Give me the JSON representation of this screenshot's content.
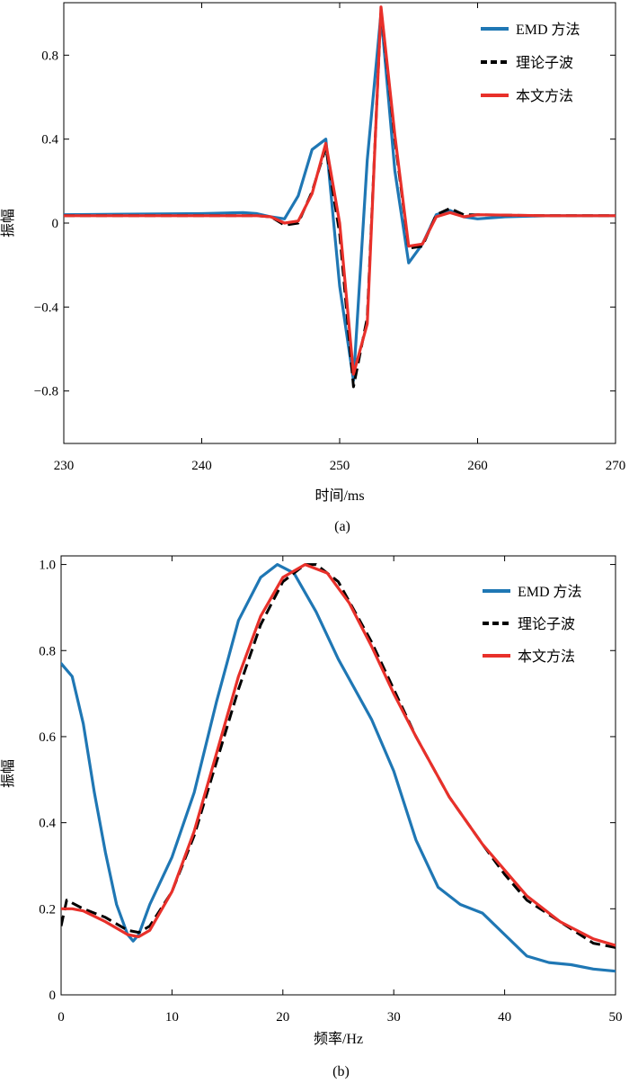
{
  "chart_data": [
    {
      "type": "line",
      "caption": "(a)",
      "xlabel": "时间/ms",
      "ylabel": "振幅",
      "xlim": [
        230,
        270
      ],
      "ylim": [
        -1.05,
        1.05
      ],
      "xticks": [
        230,
        240,
        250,
        260,
        270
      ],
      "yticks": [
        0.8,
        0.4,
        0,
        -0.4,
        -0.8
      ],
      "ytick_labels": [
        "0.8",
        "0.4",
        "0",
        "−0.4",
        "−0.8"
      ],
      "legend_position": "top-right",
      "series": [
        {
          "name": "EMD 方法",
          "color": "#1f77b4",
          "dash": "solid",
          "x": [
            230,
            240,
            243,
            244,
            245,
            246,
            247,
            248,
            249,
            250,
            251,
            252,
            253,
            254,
            255,
            256,
            257,
            258,
            259,
            260,
            262,
            265,
            270
          ],
          "y": [
            0.04,
            0.045,
            0.05,
            0.045,
            0.03,
            0.02,
            0.13,
            0.35,
            0.4,
            -0.3,
            -0.75,
            0.3,
            1.0,
            0.25,
            -0.19,
            -0.1,
            0.04,
            0.06,
            0.03,
            0.02,
            0.03,
            0.035,
            0.035
          ]
        },
        {
          "name": "理论子波",
          "color": "#000000",
          "dash": "dashed",
          "x": [
            230,
            244,
            245,
            246,
            247,
            248,
            249,
            250,
            251,
            252,
            253,
            254,
            255,
            256,
            257,
            258,
            259,
            260,
            265,
            270
          ],
          "y": [
            0.035,
            0.035,
            0.03,
            -0.01,
            0.0,
            0.15,
            0.36,
            -0.05,
            -0.78,
            -0.45,
            1.02,
            0.4,
            -0.12,
            -0.11,
            0.04,
            0.07,
            0.04,
            0.04,
            0.035,
            0.035
          ]
        },
        {
          "name": "本文方法",
          "color": "#e8302a",
          "dash": "solid",
          "x": [
            230,
            244,
            245,
            246,
            247,
            248,
            249,
            250,
            251,
            252,
            253,
            254,
            255,
            256,
            257,
            258,
            259,
            260,
            265,
            270
          ],
          "y": [
            0.035,
            0.035,
            0.03,
            0.0,
            0.01,
            0.14,
            0.38,
            0.0,
            -0.72,
            -0.48,
            1.03,
            0.42,
            -0.11,
            -0.1,
            0.03,
            0.05,
            0.03,
            0.04,
            0.035,
            0.035
          ]
        }
      ]
    },
    {
      "type": "line",
      "caption": "(b)",
      "xlabel": "频率/Hz",
      "ylabel": "振幅",
      "xlim": [
        0,
        50
      ],
      "ylim": [
        0,
        1.02
      ],
      "xticks": [
        0,
        10,
        20,
        30,
        40,
        50
      ],
      "yticks": [
        0,
        0.2,
        0.4,
        0.6,
        0.8,
        1.0
      ],
      "ytick_labels": [
        "0",
        "0.2",
        "0.4",
        "0.6",
        "0.8",
        "1.0"
      ],
      "legend_position": "top-right",
      "series": [
        {
          "name": "EMD 方法",
          "color": "#1f77b4",
          "dash": "solid",
          "x": [
            0,
            1,
            2,
            3,
            4,
            5,
            6,
            6.5,
            7,
            8,
            10,
            12,
            14,
            16,
            18,
            19.5,
            21,
            23,
            25,
            28,
            30,
            32,
            34,
            36,
            38,
            40,
            42,
            44,
            46,
            48,
            50
          ],
          "y": [
            0.77,
            0.74,
            0.63,
            0.47,
            0.33,
            0.21,
            0.14,
            0.125,
            0.14,
            0.21,
            0.32,
            0.47,
            0.68,
            0.87,
            0.97,
            1.0,
            0.98,
            0.89,
            0.78,
            0.64,
            0.52,
            0.36,
            0.25,
            0.21,
            0.19,
            0.14,
            0.09,
            0.075,
            0.07,
            0.06,
            0.055
          ]
        },
        {
          "name": "理论子波",
          "color": "#000000",
          "dash": "dashed",
          "x": [
            0,
            0.5,
            2,
            4,
            6,
            7,
            8,
            10,
            12,
            14,
            16,
            18,
            20,
            22,
            23,
            25,
            28,
            30,
            32,
            35,
            38,
            40,
            42,
            45,
            48,
            50
          ],
          "y": [
            0.16,
            0.22,
            0.2,
            0.18,
            0.15,
            0.145,
            0.16,
            0.24,
            0.37,
            0.54,
            0.71,
            0.86,
            0.96,
            1.0,
            1.0,
            0.96,
            0.82,
            0.71,
            0.6,
            0.46,
            0.35,
            0.28,
            0.22,
            0.17,
            0.12,
            0.11
          ]
        },
        {
          "name": "本文方法",
          "color": "#e8302a",
          "dash": "solid",
          "x": [
            0,
            1,
            2,
            4,
            6,
            7,
            8,
            10,
            12,
            14,
            16,
            18,
            20,
            22,
            24,
            26,
            28,
            30,
            32,
            35,
            38,
            40,
            42,
            45,
            48,
            50
          ],
          "y": [
            0.2,
            0.2,
            0.195,
            0.17,
            0.14,
            0.135,
            0.15,
            0.24,
            0.38,
            0.56,
            0.74,
            0.88,
            0.97,
            1.0,
            0.98,
            0.91,
            0.81,
            0.7,
            0.6,
            0.46,
            0.35,
            0.29,
            0.23,
            0.17,
            0.13,
            0.115
          ]
        }
      ]
    }
  ]
}
